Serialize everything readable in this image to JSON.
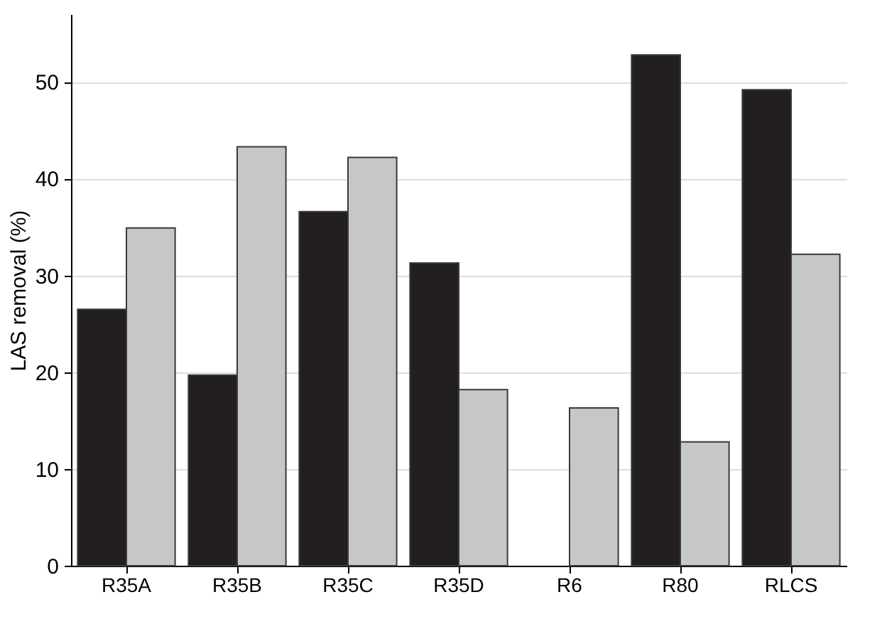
{
  "chart_data": {
    "type": "bar",
    "ylabel": "LAS removal (%)",
    "categories": [
      "R35A",
      "R35B",
      "R35C",
      "R35D",
      "R6",
      "R80",
      "RLCS"
    ],
    "series": [
      {
        "color": "#231f20",
        "values": [
          26.5,
          19.7,
          36.6,
          31.3,
          null,
          52.8,
          49.2
        ]
      },
      {
        "color": "#c6c7c9",
        "values": [
          34.9,
          43.3,
          42.2,
          18.2,
          16.3,
          12.8,
          32.2
        ]
      }
    ],
    "ylim": [
      0,
      57
    ],
    "yticks": [
      0,
      10,
      20,
      30,
      40,
      50
    ],
    "grid": "y",
    "legend": false
  }
}
